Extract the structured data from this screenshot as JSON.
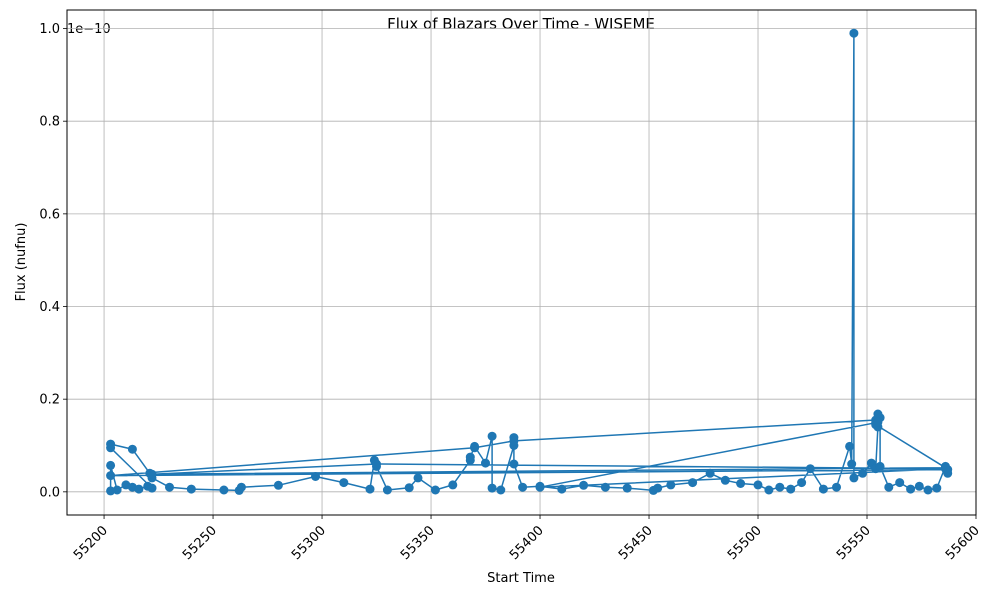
{
  "chart_data": {
    "type": "line",
    "title": "Flux of Blazars Over Time - WISEME",
    "xlabel": "Start Time",
    "ylabel": "Flux (nufnu)",
    "y_offset_label": "1e−10",
    "xlim": [
      55183,
      55600
    ],
    "ylim": [
      -0.05,
      1.04
    ],
    "y_scale_factor": "1e-10",
    "x_ticks": [
      55200,
      55250,
      55300,
      55350,
      55400,
      55450,
      55500,
      55550,
      55600
    ],
    "y_ticks": [
      0.0,
      0.2,
      0.4,
      0.6,
      0.8,
      1.0
    ],
    "x_tick_labels": [
      "55200",
      "55250",
      "55300",
      "55350",
      "55400",
      "55450",
      "55500",
      "55550",
      "55600"
    ],
    "y_tick_labels": [
      "0.0",
      "0.2",
      "0.4",
      "0.6",
      "0.8",
      "1.0"
    ],
    "grid": true,
    "line_color": "#1f77b4",
    "marker": "circle",
    "series": [
      {
        "x": [
          55203,
          55203,
          55206,
          55210,
          55213,
          55216,
          55220,
          55222,
          55203,
          55203,
          55213,
          55221,
          55222,
          55230,
          55240,
          55255,
          55262,
          55263,
          55280,
          55297,
          55310,
          55322,
          55324,
          55325,
          55330,
          55340,
          55344,
          55352,
          55360,
          55368,
          55368,
          55370,
          55375,
          55378,
          55378,
          55382,
          55388,
          55388,
          55388,
          55392,
          55400,
          55410,
          55420,
          55430,
          55440,
          55452,
          55454,
          55460,
          55470,
          55478,
          55485,
          55492,
          55500,
          55505,
          55510,
          55515,
          55520,
          55524,
          55530,
          55536,
          55542,
          55543,
          55544,
          55544,
          55548,
          55552,
          55554,
          55555,
          55555,
          55556,
          55556,
          55560,
          55565,
          55570,
          55574,
          55578,
          55582,
          55586,
          55587,
          55587,
          55203,
          55370,
          55388,
          55554,
          55554,
          55554,
          55586,
          55222,
          55325,
          55586,
          55400,
          55555
        ],
        "y": [
          0.002,
          0.057,
          0.004,
          0.015,
          0.01,
          0.006,
          0.012,
          0.008,
          0.095,
          0.103,
          0.092,
          0.04,
          0.03,
          0.01,
          0.006,
          0.004,
          0.003,
          0.01,
          0.014,
          0.033,
          0.02,
          0.006,
          0.068,
          0.055,
          0.004,
          0.009,
          0.03,
          0.004,
          0.015,
          0.068,
          0.075,
          0.098,
          0.062,
          0.12,
          0.008,
          0.004,
          0.1,
          0.117,
          0.06,
          0.01,
          0.012,
          0.006,
          0.014,
          0.01,
          0.008,
          0.003,
          0.008,
          0.015,
          0.02,
          0.04,
          0.025,
          0.018,
          0.015,
          0.004,
          0.01,
          0.006,
          0.02,
          0.05,
          0.006,
          0.01,
          0.098,
          0.06,
          0.99,
          0.03,
          0.04,
          0.062,
          0.05,
          0.14,
          0.168,
          0.16,
          0.055,
          0.01,
          0.02,
          0.006,
          0.012,
          0.004,
          0.008,
          0.055,
          0.04,
          0.048,
          0.035,
          0.095,
          0.11,
          0.155,
          0.15,
          0.145,
          0.052,
          0.038,
          0.06,
          0.05,
          0.01,
          0.15
        ]
      }
    ]
  }
}
